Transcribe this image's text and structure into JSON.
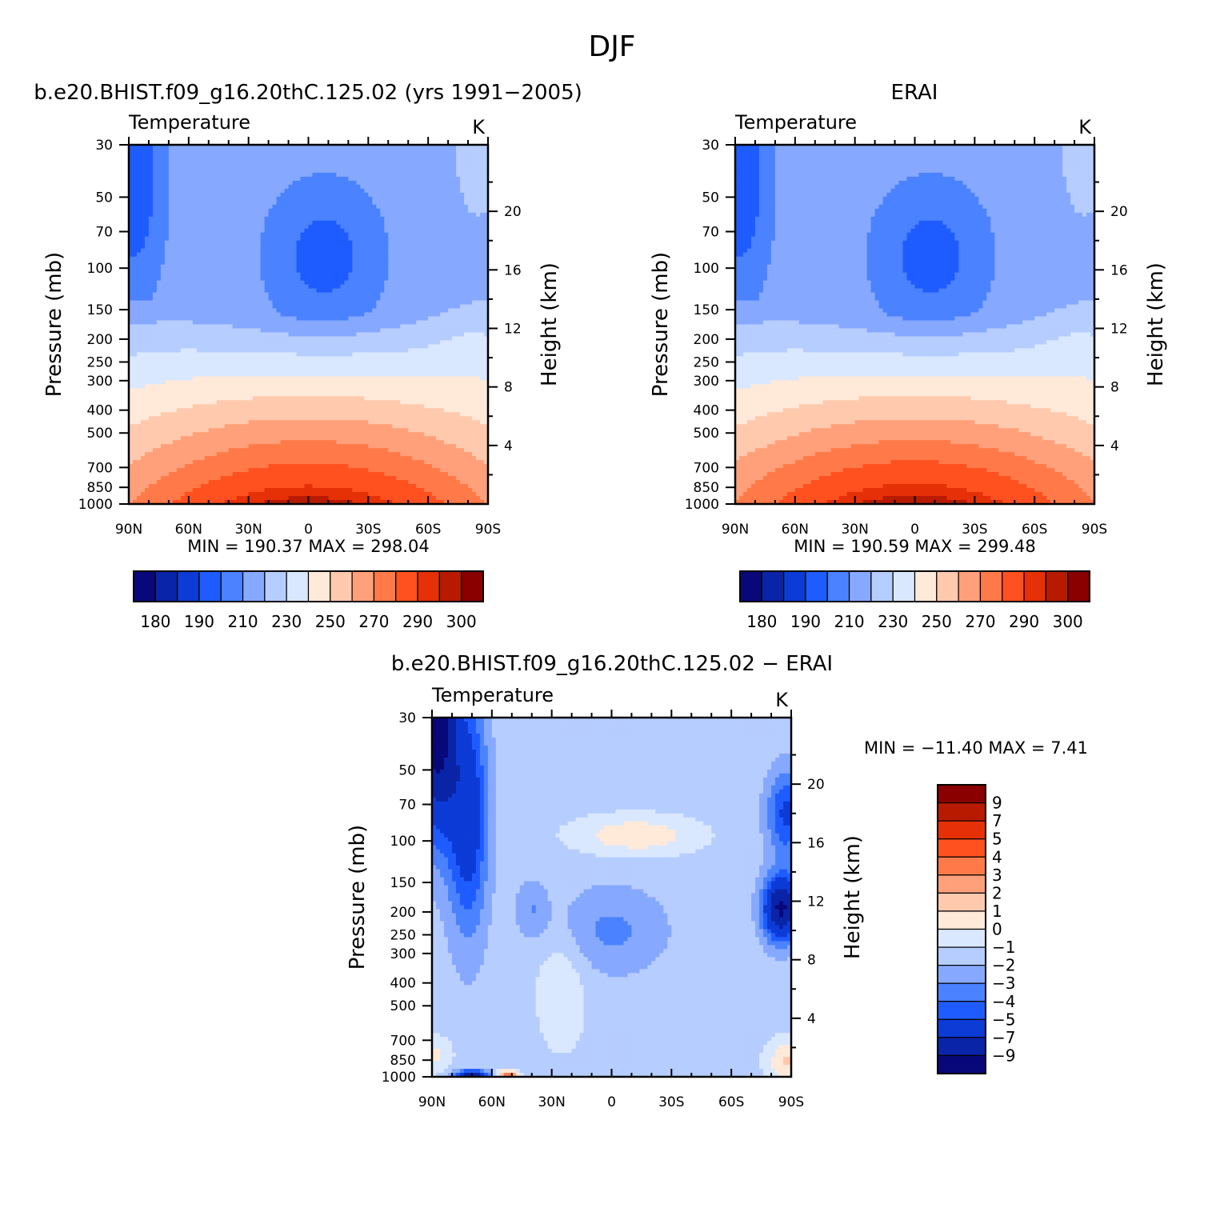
{
  "figure": {
    "title": "DJF"
  },
  "palettes": {
    "abs": [
      "#08087a",
      "#0a24a8",
      "#0d3bd6",
      "#1f5cff",
      "#4a82ff",
      "#86a9ff",
      "#b6cdff",
      "#d9e8ff",
      "#ffe9d9",
      "#ffc9ae",
      "#ffa07a",
      "#ff7a48",
      "#ff5020",
      "#e63007",
      "#b81a00",
      "#8a0000"
    ],
    "diff": [
      "#08087a",
      "#0a24a8",
      "#0d3bd6",
      "#1f5cff",
      "#4a82ff",
      "#86a9ff",
      "#b6cdff",
      "#d9e8ff",
      "#ffe9d9",
      "#ffc9ae",
      "#ffa07a",
      "#ff7a48",
      "#ff5020",
      "#e63007",
      "#b81a00",
      "#8a0000"
    ]
  },
  "chart_data": [
    {
      "type": "heatmap",
      "title": "b.e20.BHIST.f09_g16.20thC.125.02 (yrs 1991-2005)",
      "subtitle": "Temperature",
      "units": "K",
      "ylabel": "Pressure (mb)",
      "y2label": "Height (km)",
      "x_ticks": [
        "90N",
        "60N",
        "30N",
        "0",
        "30S",
        "60S",
        "90S"
      ],
      "x_values": [
        90,
        60,
        30,
        0,
        -30,
        -60,
        -90
      ],
      "y_ticks": [
        30,
        50,
        70,
        100,
        150,
        200,
        250,
        300,
        400,
        500,
        700,
        850,
        1000
      ],
      "y_log": true,
      "ylim": [
        1000,
        30
      ],
      "y2_ticks": [
        20,
        16,
        12,
        8,
        4
      ],
      "min_max_text": "MIN =  190.37   MAX =  298.04",
      "colorbar": {
        "labels": [
          "180",
          "190",
          "210",
          "230",
          "250",
          "270",
          "290",
          "300"
        ]
      }
    },
    {
      "type": "heatmap",
      "title": "ERAI",
      "subtitle": "Temperature",
      "units": "K",
      "ylabel": "Pressure (mb)",
      "y2label": "Height (km)",
      "x_ticks": [
        "90N",
        "60N",
        "30N",
        "0",
        "30S",
        "60S",
        "90S"
      ],
      "x_values": [
        90,
        60,
        30,
        0,
        -30,
        -60,
        -90
      ],
      "y_ticks": [
        30,
        50,
        70,
        100,
        150,
        200,
        250,
        300,
        400,
        500,
        700,
        850,
        1000
      ],
      "y_log": true,
      "ylim": [
        1000,
        30
      ],
      "y2_ticks": [
        20,
        16,
        12,
        8,
        4
      ],
      "min_max_text": "MIN =  190.59   MAX =  299.48",
      "colorbar": {
        "labels": [
          "180",
          "190",
          "210",
          "230",
          "250",
          "270",
          "290",
          "300"
        ]
      }
    },
    {
      "type": "heatmap",
      "title": "b.e20.BHIST.f09_g16.20thC.125.02 - ERAI",
      "subtitle": "Temperature",
      "units": "K",
      "ylabel": "Pressure (mb)",
      "y2label": "Height (km)",
      "x_ticks": [
        "90N",
        "60N",
        "30N",
        "0",
        "30S",
        "60S",
        "90S"
      ],
      "x_values": [
        90,
        60,
        30,
        0,
        -30,
        -60,
        -90
      ],
      "y_ticks": [
        30,
        50,
        70,
        100,
        150,
        200,
        250,
        300,
        400,
        500,
        700,
        850,
        1000
      ],
      "y_log": true,
      "ylim": [
        1000,
        30
      ],
      "y2_ticks": [
        20,
        16,
        12,
        8,
        4
      ],
      "min_max_text": "MIN = -11.40   MAX =    7.41",
      "colorbar": {
        "labels": [
          "9",
          "7",
          "5",
          "4",
          "3",
          "2",
          "1",
          "0",
          "-1",
          "-2",
          "-3",
          "-4",
          "-5",
          "-7",
          "-9"
        ]
      }
    }
  ]
}
